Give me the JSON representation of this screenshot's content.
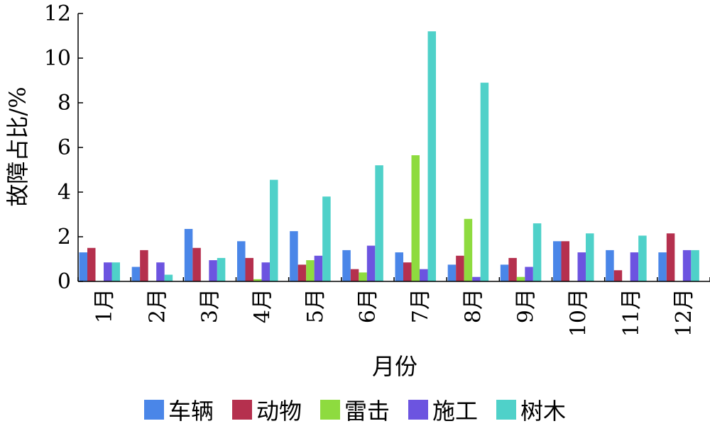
{
  "chart_data": {
    "type": "bar",
    "ylabel": "故障占比/%",
    "xlabel": "月份",
    "ylim": [
      0,
      12
    ],
    "yticks": [
      "0",
      "2",
      "4",
      "6",
      "8",
      "10",
      "12"
    ],
    "categories": [
      "1月",
      "2月",
      "3月",
      "4月",
      "5月",
      "6月",
      "7月",
      "8月",
      "9月",
      "10月",
      "11月",
      "12月"
    ],
    "legend_position": "bottom",
    "grid": false,
    "series": [
      {
        "name": "车辆",
        "color": "#4A86E8",
        "values": [
          1.3,
          0.65,
          2.35,
          1.8,
          2.25,
          1.4,
          1.3,
          0.75,
          0.75,
          1.8,
          1.4,
          1.3
        ]
      },
      {
        "name": "动物",
        "color": "#B5304E",
        "values": [
          1.5,
          1.4,
          1.5,
          1.05,
          0.75,
          0.55,
          0.85,
          1.15,
          1.05,
          1.8,
          0.5,
          2.15
        ]
      },
      {
        "name": "雷击",
        "color": "#8EDB3F",
        "values": [
          0,
          0,
          0,
          0.1,
          0.95,
          0.4,
          5.65,
          2.8,
          0.2,
          0,
          0,
          0
        ]
      },
      {
        "name": "施工",
        "color": "#6C54E0",
        "values": [
          0.85,
          0.85,
          0.95,
          0.85,
          1.15,
          1.6,
          0.55,
          0.2,
          0.65,
          1.3,
          1.3,
          1.4
        ]
      },
      {
        "name": "树木",
        "color": "#4FD1C9",
        "values": [
          0.85,
          0.3,
          1.05,
          4.55,
          3.8,
          5.2,
          11.2,
          8.9,
          2.6,
          2.15,
          2.05,
          1.4
        ]
      }
    ]
  }
}
